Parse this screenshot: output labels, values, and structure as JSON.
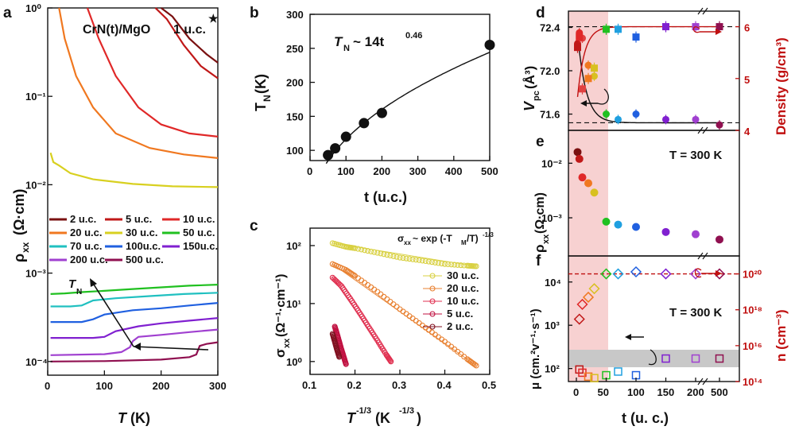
{
  "panels": {
    "a": {
      "letter": "a",
      "title": "CrN(t)/MgO",
      "corner": "1 u.c.",
      "ylabel": "ρ",
      "ysub": "xx",
      "yunit": "(Ω·cm)",
      "xlabel_T": "T",
      "xlabel_unit": "(K)",
      "arrow_label": "T",
      "arrow_sub": "N",
      "yticks": [
        "10⁰",
        "10⁻¹",
        "10⁻²",
        "10⁻³",
        "10⁻⁴"
      ],
      "xticks": [
        "0",
        "100",
        "200",
        "300"
      ]
    },
    "b": {
      "letter": "b",
      "formula_main": "T",
      "formula_sub": "N",
      "formula_rest": " ~ 14t",
      "formula_exp": "0.46",
      "ylabel": "T",
      "ysub": "N",
      "yunit": " (K)",
      "xlabel": "t (u.c.)",
      "yticks": [
        "100",
        "150",
        "200",
        "250",
        "300"
      ],
      "xticks": [
        "0",
        "100",
        "200",
        "300",
        "400",
        "500"
      ]
    },
    "c": {
      "letter": "c",
      "formula": "σ",
      "formula_sub": "xx",
      "formula_rest": " ~ exp (-T",
      "formula_sub2": "M",
      "formula_rest2": "/T)",
      "formula_exp": "-1/3",
      "ylabel": "σ",
      "ysub": "xx",
      "yunit": " (Ω⁻¹·cm⁻¹)",
      "xlabel": "T",
      "xexp": "-1/3",
      "xunit": " (K",
      "xunit_exp": "-1/3",
      "xunit_end": ")",
      "yticks": [
        "10²",
        "10¹",
        "10⁰"
      ],
      "xticks": [
        "0.1",
        "0.2",
        "0.3",
        "0.4",
        "0.5"
      ],
      "legend": [
        "30 u.c.",
        "20 u.c.",
        "10 u.c.",
        "5 u.c.",
        "2 u.c."
      ]
    },
    "d": {
      "letter": "d",
      "ylabel": "V",
      "ysub": "pc",
      "yunit": " (Å³)",
      "y2label": "Density (g/cm³)",
      "yticks": [
        "72.4",
        "72.0",
        "71.6"
      ],
      "y2ticks": [
        "6",
        "5",
        "4"
      ]
    },
    "e": {
      "letter": "e",
      "label": "T = 300 K",
      "ylabel": "ρ",
      "ysub": "xx",
      "yunit": " (Ω·cm)",
      "yticks": [
        "10⁻²",
        "10⁻³"
      ]
    },
    "f": {
      "letter": "f",
      "label": "T = 300 K",
      "ylabel": "μ (cm.²v⁻¹·s⁻¹)",
      "y2label": "n (cm⁻³)",
      "yticks": [
        "10⁴",
        "10³",
        "10²"
      ],
      "y2ticks": [
        "10²⁰",
        "10¹⁸",
        "10¹⁶",
        "10¹⁴"
      ],
      "xlabel": "t (u. c.)",
      "xticks": [
        "0",
        "50",
        "100",
        "150",
        "200",
        "500"
      ]
    }
  },
  "chart_data": [
    {
      "type": "line",
      "panel": "a",
      "title": "CrN(t)/MgO",
      "xlabel": "T (K)",
      "ylabel": "ρxx (Ω·cm)",
      "xlim": [
        0,
        300
      ],
      "ylim": [
        7e-05,
        1
      ],
      "yscale": "log",
      "legend": [
        "2 u.c.",
        "5 u.c.",
        "10 u.c.",
        "20 u.c.",
        "30 u.c.",
        "50 u.c.",
        "70 u.c.",
        "100u.c.",
        "150u.c.",
        "200 u.c.",
        "500 u.c."
      ],
      "series": [
        {
          "name": "2 u.c.",
          "color": "#7a1010",
          "x": [
            200,
            220,
            250,
            280,
            300
          ],
          "y": [
            1.0,
            0.8,
            0.45,
            0.3,
            0.24
          ]
        },
        {
          "name": "5 u.c.",
          "color": "#c01818",
          "x": [
            190,
            210,
            240,
            270,
            300
          ],
          "y": [
            1.0,
            0.75,
            0.38,
            0.22,
            0.16
          ]
        },
        {
          "name": "10 u.c.",
          "color": "#e02828",
          "x": [
            70,
            90,
            120,
            160,
            200,
            250,
            300
          ],
          "y": [
            1.0,
            0.45,
            0.17,
            0.075,
            0.048,
            0.038,
            0.035
          ]
        },
        {
          "name": "20 u.c.",
          "color": "#f07820",
          "x": [
            20,
            30,
            50,
            80,
            120,
            180,
            240,
            300
          ],
          "y": [
            1.0,
            0.45,
            0.17,
            0.075,
            0.038,
            0.026,
            0.022,
            0.02
          ]
        },
        {
          "name": "30 u.c.",
          "color": "#d8d020",
          "x": [
            5,
            10,
            20,
            40,
            80,
            150,
            220,
            300
          ],
          "y": [
            0.023,
            0.018,
            0.0165,
            0.0135,
            0.0115,
            0.0102,
            0.0096,
            0.0094
          ]
        },
        {
          "name": "50 u.c.",
          "color": "#20c020",
          "x": [
            5,
            30,
            60,
            100,
            150,
            200,
            250,
            300
          ],
          "y": [
            0.00058,
            0.00059,
            0.00061,
            0.00063,
            0.00066,
            0.00069,
            0.00072,
            0.00074
          ]
        },
        {
          "name": "70 u.c.",
          "color": "#20c0c0",
          "x": [
            5,
            40,
            60,
            80,
            120,
            180,
            240,
            300
          ],
          "y": [
            0.00042,
            0.00042,
            0.00043,
            0.00049,
            0.00052,
            0.00055,
            0.00058,
            0.0006
          ]
        },
        {
          "name": "100u.c.",
          "color": "#2060e0",
          "x": [
            5,
            60,
            80,
            100,
            150,
            200,
            250,
            300
          ],
          "y": [
            0.00028,
            0.00028,
            0.0003,
            0.00034,
            0.00038,
            0.0004,
            0.00043,
            0.00046
          ]
        },
        {
          "name": "150u.c.",
          "color": "#8020d0",
          "x": [
            5,
            80,
            100,
            120,
            160,
            200,
            250,
            300
          ],
          "y": [
            0.000185,
            0.000185,
            0.00019,
            0.00022,
            0.00025,
            0.00027,
            0.00029,
            0.00031
          ]
        },
        {
          "name": "200 u.c.",
          "color": "#a040d0",
          "x": [
            5,
            100,
            130,
            145,
            150,
            160,
            200,
            250,
            300
          ],
          "y": [
            0.000118,
            0.000121,
            0.000128,
            0.000145,
            0.00017,
            0.00019,
            0.0002,
            0.000215,
            0.00023
          ]
        },
        {
          "name": "500 u.c.",
          "color": "#901050",
          "x": [
            5,
            100,
            200,
            250,
            262,
            268,
            280,
            300
          ],
          "y": [
            0.0001,
            0.000101,
            0.000105,
            0.000112,
            0.00012,
            0.00015,
            0.000158,
            0.000165
          ]
        }
      ]
    },
    {
      "type": "scatter",
      "panel": "b",
      "xlabel": "t (u.c.)",
      "ylabel": "TN (K)",
      "xlim": [
        0,
        500
      ],
      "ylim": [
        85,
        300
      ],
      "x": [
        50,
        70,
        100,
        150,
        200,
        500
      ],
      "y": [
        93,
        103,
        120,
        140,
        155,
        255
      ],
      "fit": {
        "formula": "TN ~ 14t^0.46",
        "a": 14,
        "b": 0.46
      }
    },
    {
      "type": "scatter",
      "panel": "c",
      "xlabel": "T^-1/3 (K^-1/3)",
      "ylabel": "σxx (Ω^-1·cm^-1)",
      "xlim": [
        0.1,
        0.5
      ],
      "ylim": [
        0.6,
        200
      ],
      "yscale": "log",
      "series": [
        {
          "name": "30 u.c.",
          "color": "#d8d040",
          "x": [
            0.15,
            0.18,
            0.2,
            0.25,
            0.3,
            0.35,
            0.4,
            0.45,
            0.47
          ],
          "y": [
            110,
            95,
            90,
            75,
            62,
            55,
            48,
            45,
            44
          ]
        },
        {
          "name": "20 u.c.",
          "color": "#e88030",
          "x": [
            0.15,
            0.18,
            0.2,
            0.25,
            0.3,
            0.35,
            0.4,
            0.45,
            0.47
          ],
          "y": [
            48,
            38,
            30,
            16,
            8,
            4.2,
            2.2,
            1.1,
            0.85
          ]
        },
        {
          "name": "10 u.c.",
          "color": "#e03050",
          "x": [
            0.15,
            0.17,
            0.19,
            0.21,
            0.23,
            0.25,
            0.27,
            0.28
          ],
          "y": [
            28,
            20,
            12,
            7,
            4,
            2.3,
            1.3,
            1.0
          ]
        },
        {
          "name": "5 u.c.",
          "color": "#c01040",
          "x": [
            0.155,
            0.16,
            0.165,
            0.17,
            0.175,
            0.18
          ],
          "y": [
            4,
            3,
            2.2,
            1.6,
            1.2,
            0.9
          ]
        },
        {
          "name": "2 u.c.",
          "color": "#801020",
          "x": [
            0.15,
            0.155,
            0.16,
            0.165
          ],
          "y": [
            3,
            2.2,
            1.6,
            1.2
          ]
        }
      ]
    },
    {
      "type": "scatter",
      "panel": "d",
      "xlabel": "t (u. c.)",
      "ylabel": "Vpc (Å³)",
      "y2label": "Density (g/cm³)",
      "ylim": [
        71.45,
        72.55
      ],
      "y2lim": [
        4,
        6.3
      ],
      "vpc": {
        "x": [
          2,
          5,
          10,
          20,
          30,
          50,
          70,
          100,
          150,
          200,
          500
        ],
        "y": [
          72.25,
          72.35,
          72.3,
          72.05,
          71.95,
          71.6,
          71.55,
          71.6,
          71.55,
          71.55,
          71.5
        ],
        "colors": [
          "#c01818",
          "#e02828",
          "#e04040",
          "#f07820",
          "#d8c020",
          "#20c020",
          "#20a0e0",
          "#2060e0",
          "#8020d0",
          "#a040d0",
          "#901050"
        ]
      },
      "density": {
        "x": [
          2,
          5,
          10,
          20,
          30,
          50,
          70,
          100,
          150,
          200,
          500
        ],
        "y": [
          5.6,
          5.8,
          4.8,
          5.0,
          5.2,
          5.95,
          5.95,
          5.8,
          6.0,
          6.0,
          6.0
        ],
        "colors": [
          "#c01818",
          "#e02828",
          "#e04040",
          "#f07820",
          "#d8c020",
          "#20c020",
          "#20a0e0",
          "#2060e0",
          "#8020d0",
          "#a040d0",
          "#901050"
        ]
      },
      "reference_lines": {
        "vpc_low": 71.52,
        "density_high": 6.0
      }
    },
    {
      "type": "scatter",
      "panel": "e",
      "xlabel": "t (u. c.)",
      "ylabel": "ρxx (Ω·cm)",
      "yscale": "log",
      "ylim": [
        0.0002,
        0.04
      ],
      "x": [
        2,
        5,
        10,
        20,
        30,
        50,
        70,
        100,
        150,
        200,
        500
      ],
      "y": [
        0.016,
        0.012,
        0.0055,
        0.0043,
        0.0029,
        0.00085,
        0.00075,
        0.00068,
        0.00055,
        0.0005,
        0.0004
      ],
      "colors": [
        "#7a1010",
        "#c01818",
        "#e02828",
        "#f07820",
        "#d8c020",
        "#20c020",
        "#20a0e0",
        "#2060e0",
        "#8020d0",
        "#a040d0",
        "#901050"
      ]
    },
    {
      "type": "scatter",
      "panel": "f",
      "xlabel": "t (u. c.)",
      "ylabel": "μ (cm.²v⁻¹·s⁻¹)",
      "y2label": "n (cm⁻³)",
      "yscale": "log",
      "ylim": [
        50,
        40000
      ],
      "y2lim": [
        100000000000000.0,
        1e+21
      ],
      "mobility": {
        "x": [
          5,
          10,
          20,
          30,
          50,
          70,
          100,
          150,
          200,
          500
        ],
        "y": [
          95,
          80,
          65,
          60,
          70,
          85,
          70,
          170,
          170,
          170
        ]
      },
      "density_n": {
        "x": [
          5,
          10,
          20,
          30,
          50,
          70,
          100,
          150,
          200,
          500
        ],
        "y": [
          3e+17,
          2e+18,
          5e+18,
          1.5e+19,
          1e+20,
          1e+20,
          1.3e+20,
          1e+20,
          1e+20,
          1e+20
        ]
      },
      "colors": [
        "#c01818",
        "#e02828",
        "#f07820",
        "#d8c020",
        "#20c020",
        "#20a0e0",
        "#2060e0",
        "#8020d0",
        "#a040d0",
        "#901050"
      ]
    }
  ]
}
